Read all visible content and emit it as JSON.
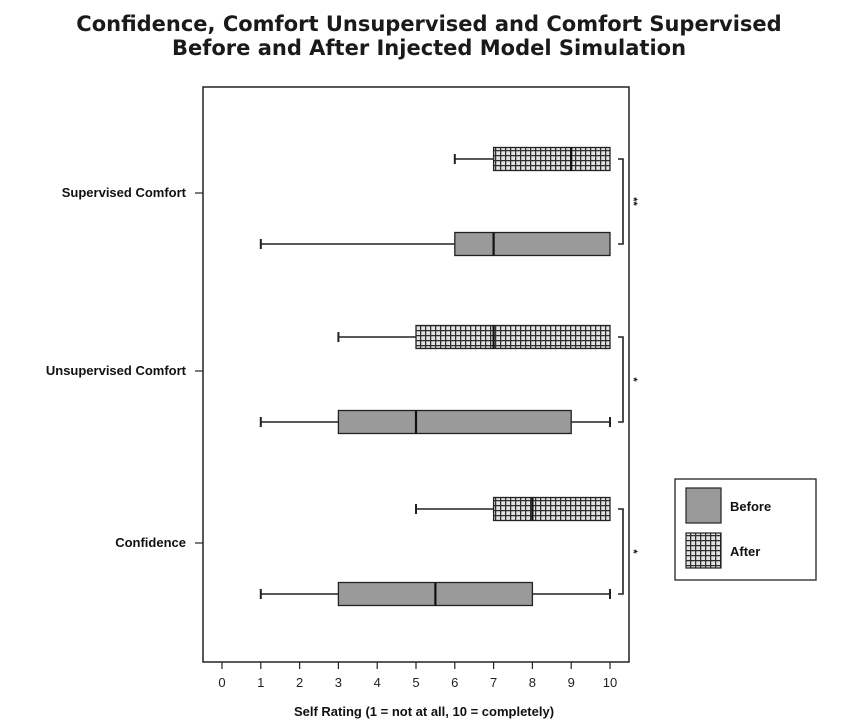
{
  "chart_data": {
    "type": "box",
    "title": "Confidence, Comfort Unsupervised and Comfort Supervised",
    "subtitle": "Before and After Injected Model Simulation",
    "xlabel": "Self Rating (1 = not at all, 10 = completely)",
    "xlim": [
      0,
      10
    ],
    "xticks": [
      "0",
      "1",
      "2",
      "3",
      "4",
      "5",
      "6",
      "7",
      "8",
      "9",
      "10"
    ],
    "grid": false,
    "legend_position": "right",
    "series": [
      {
        "name": "Before",
        "pattern": "solid",
        "color": "#9a9a9a"
      },
      {
        "name": "After",
        "pattern": "checkered",
        "color": "#3c3c3c"
      }
    ],
    "categories": [
      "Supervised Comfort",
      "Unsupervised Comfort",
      "Confidence"
    ],
    "boxes": [
      {
        "category": "Supervised Comfort",
        "series": "After",
        "min": 6,
        "q1": 7,
        "median": 9,
        "q3": 10,
        "max": 10
      },
      {
        "category": "Supervised Comfort",
        "series": "Before",
        "min": 1,
        "q1": 6,
        "median": 7,
        "q3": 10,
        "max": 10
      },
      {
        "category": "Unsupervised Comfort",
        "series": "After",
        "min": 3,
        "q1": 5,
        "median": 7,
        "q3": 10,
        "max": 10
      },
      {
        "category": "Unsupervised Comfort",
        "series": "Before",
        "min": 1,
        "q1": 3,
        "median": 5,
        "q3": 9,
        "max": 10
      },
      {
        "category": "Confidence",
        "series": "After",
        "min": 5,
        "q1": 7,
        "median": 8,
        "q3": 10,
        "max": 10
      },
      {
        "category": "Confidence",
        "series": "Before",
        "min": 1,
        "q1": 3,
        "median": 5.5,
        "q3": 8,
        "max": 10
      }
    ],
    "significance": [
      {
        "category": "Supervised Comfort",
        "mark": "**"
      },
      {
        "category": "Unsupervised Comfort",
        "mark": "*"
      },
      {
        "category": "Confidence",
        "mark": "*"
      }
    ]
  }
}
